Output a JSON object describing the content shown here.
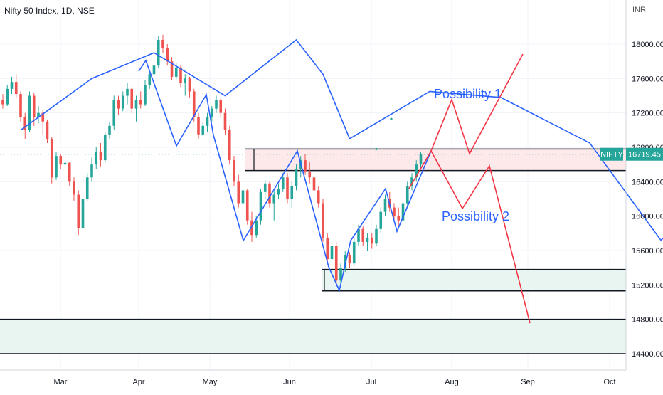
{
  "header": {
    "title": "Nifty 50 Index, 1D, NSE",
    "currency": "INR"
  },
  "colors": {
    "up": "#26a69a",
    "down": "#ef5350",
    "blue": "#2962ff",
    "red": "#f23645",
    "grid": "#f0f3fa",
    "axis": "#131722",
    "zone_pink": "#fde8ea",
    "zone_green": "#e8f5f1",
    "label_bg": "#26a69a"
  },
  "chart_data": {
    "type": "candlestick",
    "price_range": [
      14250,
      18450
    ],
    "y_ticks": [
      {
        "value": 18000,
        "label": "18000.00"
      },
      {
        "value": 17600,
        "label": "17600.00"
      },
      {
        "value": 17200,
        "label": "17200.00"
      },
      {
        "value": 16800,
        "label": "16800.00"
      },
      {
        "value": 16400,
        "label": "16400.00"
      },
      {
        "value": 16000,
        "label": "16000.00"
      },
      {
        "value": 15600,
        "label": "15600.00"
      },
      {
        "value": 15200,
        "label": "15200.00"
      },
      {
        "value": 14800,
        "label": "14800.00"
      },
      {
        "value": 14400,
        "label": "14400.00"
      }
    ],
    "x_ticks": [
      "Mar",
      "Apr",
      "May",
      "Jun",
      "Jul",
      "Aug",
      "Sep",
      "Oct"
    ],
    "last_price": {
      "symbol": "NIFTY",
      "value": "16719.45",
      "price": 16719.45
    },
    "candles": [
      [
        17350,
        17420,
        17250,
        17300
      ],
      [
        17300,
        17520,
        17280,
        17480
      ],
      [
        17480,
        17620,
        17420,
        17560
      ],
      [
        17560,
        17650,
        17380,
        17420
      ],
      [
        17420,
        17450,
        17100,
        17150
      ],
      [
        17150,
        17200,
        16900,
        17000
      ],
      [
        17000,
        17450,
        16980,
        17400
      ],
      [
        17400,
        17430,
        17050,
        17150
      ],
      [
        17150,
        17280,
        17080,
        17200
      ],
      [
        17200,
        17230,
        16950,
        17100
      ],
      [
        17100,
        17120,
        16850,
        16900
      ],
      [
        16900,
        16920,
        16380,
        16450
      ],
      [
        16450,
        16750,
        16420,
        16700
      ],
      [
        16700,
        16720,
        16550,
        16600
      ],
      [
        16600,
        16720,
        16580,
        16620
      ],
      [
        16620,
        16630,
        16350,
        16400
      ],
      [
        16400,
        16450,
        16180,
        16250
      ],
      [
        16250,
        16300,
        15780,
        15860
      ],
      [
        15860,
        16250,
        15750,
        16200
      ],
      [
        16200,
        16500,
        16180,
        16450
      ],
      [
        16450,
        16680,
        16400,
        16600
      ],
      [
        16600,
        16800,
        16550,
        16750
      ],
      [
        16750,
        16850,
        16580,
        16650
      ],
      [
        16650,
        16980,
        16620,
        16950
      ],
      [
        16950,
        17100,
        16900,
        17050
      ],
      [
        17050,
        17400,
        17000,
        17350
      ],
      [
        17350,
        17400,
        17180,
        17250
      ],
      [
        17250,
        17450,
        17220,
        17400
      ],
      [
        17400,
        17550,
        17300,
        17480
      ],
      [
        17480,
        17500,
        17200,
        17250
      ],
      [
        17250,
        17400,
        17100,
        17350
      ],
      [
        17350,
        17450,
        17250,
        17300
      ],
      [
        17300,
        17580,
        17280,
        17520
      ],
      [
        17520,
        17700,
        17480,
        17650
      ],
      [
        17650,
        17800,
        17600,
        17750
      ],
      [
        17750,
        18100,
        17720,
        18050
      ],
      [
        18050,
        18110,
        17900,
        17950
      ],
      [
        17950,
        18000,
        17750,
        17800
      ],
      [
        17800,
        17850,
        17580,
        17620
      ],
      [
        17620,
        17780,
        17590,
        17730
      ],
      [
        17730,
        17760,
        17500,
        17550
      ],
      [
        17550,
        17650,
        17400,
        17600
      ],
      [
        17600,
        17620,
        17380,
        17450
      ],
      [
        17450,
        17480,
        17100,
        17150
      ],
      [
        17150,
        17200,
        16900,
        16950
      ],
      [
        16950,
        17100,
        16930,
        17050
      ],
      [
        17050,
        17200,
        16980,
        17150
      ],
      [
        17150,
        17280,
        17100,
        17250
      ],
      [
        17250,
        17400,
        17200,
        17350
      ],
      [
        17350,
        17380,
        17150,
        17200
      ],
      [
        17200,
        17250,
        16950,
        17000
      ],
      [
        17000,
        17050,
        16600,
        16650
      ],
      [
        16650,
        16700,
        16350,
        16400
      ],
      [
        16400,
        16480,
        16100,
        16150
      ],
      [
        16150,
        16350,
        16100,
        16300
      ],
      [
        16300,
        16320,
        15900,
        15950
      ],
      [
        15950,
        16050,
        15700,
        15780
      ],
      [
        15780,
        16000,
        15750,
        15950
      ],
      [
        15950,
        16320,
        15900,
        16280
      ],
      [
        16280,
        16420,
        16200,
        16380
      ],
      [
        16380,
        16400,
        16100,
        16150
      ],
      [
        16150,
        16300,
        15950,
        16250
      ],
      [
        16250,
        16380,
        16200,
        16320
      ],
      [
        16320,
        16500,
        16280,
        16450
      ],
      [
        16450,
        16500,
        16150,
        16200
      ],
      [
        16200,
        16400,
        16100,
        16350
      ],
      [
        16350,
        16600,
        16300,
        16550
      ],
      [
        16550,
        16700,
        16450,
        16650
      ],
      [
        16650,
        16720,
        16480,
        16520
      ],
      [
        16520,
        16630,
        16380,
        16450
      ],
      [
        16450,
        16500,
        16250,
        16300
      ],
      [
        16300,
        16350,
        16100,
        16150
      ],
      [
        16150,
        16200,
        15700,
        15750
      ],
      [
        15750,
        15800,
        15450,
        15500
      ],
      [
        15500,
        15700,
        15300,
        15650
      ],
      [
        15650,
        15700,
        15180,
        15250
      ],
      [
        15250,
        15450,
        15200,
        15400
      ],
      [
        15400,
        15600,
        15350,
        15550
      ],
      [
        15550,
        15580,
        15400,
        15450
      ],
      [
        15450,
        15750,
        15420,
        15700
      ],
      [
        15700,
        15900,
        15650,
        15850
      ],
      [
        15850,
        15880,
        15650,
        15700
      ],
      [
        15700,
        15800,
        15600,
        15750
      ],
      [
        15750,
        15800,
        15620,
        15680
      ],
      [
        15680,
        15900,
        15650,
        15850
      ],
      [
        15850,
        16100,
        15800,
        16050
      ],
      [
        16050,
        16250,
        16000,
        16200
      ],
      [
        16200,
        16280,
        16050,
        16100
      ],
      [
        16100,
        16150,
        15950,
        16000
      ],
      [
        16000,
        16100,
        15880,
        15950
      ],
      [
        15950,
        16200,
        15900,
        16150
      ],
      [
        16150,
        16400,
        16100,
        16350
      ],
      [
        16350,
        16500,
        16300,
        16450
      ],
      [
        16450,
        16650,
        16400,
        16600
      ],
      [
        16600,
        16750,
        16550,
        16720
      ]
    ],
    "stray_points": [
      {
        "value": 17130
      },
      {
        "value": 16780
      }
    ],
    "zones": [
      {
        "top": 16780,
        "bottom": 16530
      },
      {
        "top": 15380,
        "bottom": 15130
      },
      {
        "top": 14800,
        "bottom": 14400
      }
    ],
    "annotations": [
      "Possibility 1",
      "Possibility 2"
    ],
    "blue_path_prices": [
      17000,
      17600,
      17900,
      17400,
      18050,
      17650,
      16900,
      17450,
      17380,
      16850,
      15720,
      16280,
      16100,
      16750,
      16000,
      15200,
      15750,
      15580,
      16250,
      16000,
      16750
    ]
  }
}
